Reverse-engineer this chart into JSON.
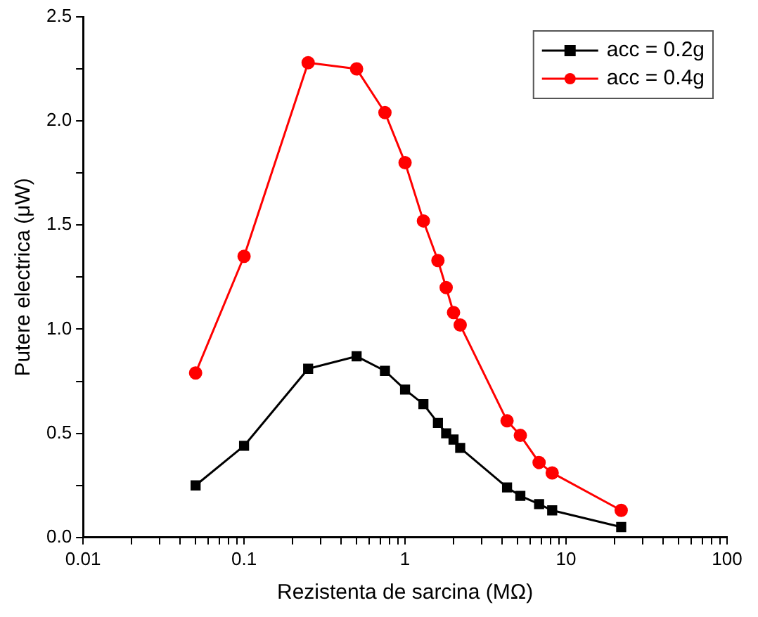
{
  "chart_data": {
    "type": "line",
    "xlabel": "Rezistenta de sarcina (MΩ)",
    "ylabel": "Putere electrica (μW)",
    "x": [
      0.05,
      0.1,
      0.25,
      0.5,
      0.75,
      1,
      1.3,
      1.6,
      1.8,
      2,
      2.2,
      4.3,
      5.2,
      6.8,
      8.2,
      22
    ],
    "series": [
      {
        "name": "acc = 0.2g",
        "color": "#000000",
        "marker": "square",
        "values": [
          0.25,
          0.44,
          0.81,
          0.87,
          0.8,
          0.71,
          0.64,
          0.55,
          0.5,
          0.47,
          0.43,
          0.24,
          0.2,
          0.16,
          0.13,
          0.05
        ]
      },
      {
        "name": "acc = 0.4g",
        "color": "#ff0000",
        "marker": "circle",
        "values": [
          0.79,
          1.35,
          2.28,
          2.25,
          2.04,
          1.8,
          1.52,
          1.33,
          1.2,
          1.08,
          1.02,
          0.56,
          0.49,
          0.36,
          0.31,
          0.13
        ]
      }
    ],
    "log": "x",
    "xlim": [
      0.01,
      100
    ],
    "xticks": [
      0.01,
      {
        "value": 0.02,
        "label": null
      },
      {
        "value": 0.03,
        "label": null
      },
      {
        "value": 0.04,
        "label": null
      },
      {
        "value": 0.05,
        "label": null
      },
      {
        "value": 0.06,
        "label": null
      },
      {
        "value": 0.07,
        "label": null
      },
      {
        "value": 0.08,
        "label": null
      },
      {
        "value": 0.09,
        "label": null
      },
      0.1,
      {
        "value": 0.2,
        "label": null
      },
      {
        "value": 0.3,
        "label": null
      },
      {
        "value": 0.4,
        "label": null
      },
      {
        "value": 0.5,
        "label": null
      },
      {
        "value": 0.6,
        "label": null
      },
      {
        "value": 0.7,
        "label": null
      },
      {
        "value": 0.8,
        "label": null
      },
      {
        "value": 0.9,
        "label": null
      },
      1,
      {
        "value": 2,
        "label": null
      },
      {
        "value": 3,
        "label": null
      },
      {
        "value": 4,
        "label": null
      },
      {
        "value": 5,
        "label": null
      },
      {
        "value": 6,
        "label": null
      },
      {
        "value": 7,
        "label": null
      },
      {
        "value": 8,
        "label": null
      },
      {
        "value": 9,
        "label": null
      },
      10,
      {
        "value": 20,
        "label": null
      },
      {
        "value": 30,
        "label": null
      },
      {
        "value": 40,
        "label": null
      },
      {
        "value": 50,
        "label": null
      },
      {
        "value": 60,
        "label": null
      },
      {
        "value": 70,
        "label": null
      },
      {
        "value": 80,
        "label": null
      },
      {
        "value": 90,
        "label": null
      },
      100
    ],
    "ylim": [
      0,
      2.5
    ],
    "yticks": [
      {
        "value": 0,
        "label": "0.0"
      },
      {
        "value": 0.25,
        "label": null
      },
      {
        "value": 0.5,
        "label": "0.5"
      },
      {
        "value": 0.75,
        "label": null
      },
      {
        "value": 1,
        "label": "1.0"
      },
      {
        "value": 1.25,
        "label": null
      },
      {
        "value": 1.5,
        "label": "1.5"
      },
      {
        "value": 1.75,
        "label": null
      },
      {
        "value": 2,
        "label": "2.0"
      },
      {
        "value": 2.25,
        "label": null
      },
      {
        "value": 2.5,
        "label": "2.5"
      }
    ],
    "grid": false,
    "legend": "top right",
    "line_style": "solid"
  }
}
